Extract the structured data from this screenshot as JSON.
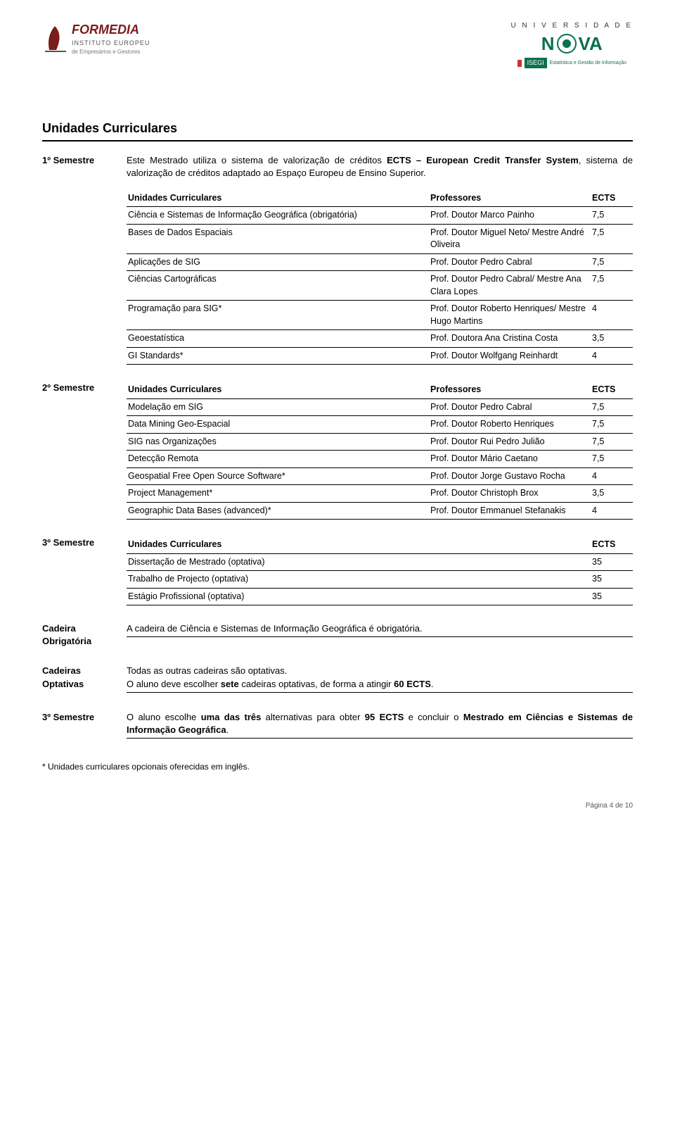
{
  "logos": {
    "left": {
      "brand": "FORMEDIA",
      "line1": "INSTITUTO EUROPEU",
      "line2": "de Empresários e Gestores",
      "accent_color": "#7a1d1d"
    },
    "right": {
      "uni": "U N I V E R S I D A D E",
      "nova": "NOVA",
      "isegi_label": "ISEGI",
      "isegi_sub": "Estatística e Gestão de Informação",
      "nova_color": "#0a7050"
    }
  },
  "title": "Unidades Curriculares",
  "intro": "Este Mestrado utiliza o sistema de valorização de créditos ECTS – European Credit Transfer System, sistema de valorização de créditos adaptado ao Espaço Europeu de Ensino Superior.",
  "intro_bold_phrases": [
    "ECTS – European Credit Transfer System"
  ],
  "sem1": {
    "label": "1º Semestre",
    "headers": [
      "Unidades Curriculares",
      "Professores",
      "ECTS"
    ],
    "rows": [
      {
        "uc": "Ciência e Sistemas de Informação Geográfica (obrigatória)",
        "prof": "Prof. Doutor Marco Painho",
        "ects": "7,5"
      },
      {
        "uc": "Bases de Dados Espaciais",
        "prof": "Prof. Doutor Miguel Neto/ Mestre André Oliveira",
        "ects": "7,5"
      },
      {
        "uc": "Aplicações de SIG",
        "prof": "Prof. Doutor Pedro Cabral",
        "ects": "7,5"
      },
      {
        "uc": "Ciências Cartográficas",
        "prof": "Prof. Doutor Pedro Cabral/ Mestre Ana Clara Lopes",
        "ects": "7,5"
      },
      {
        "uc": "Programação para SIG*",
        "prof": "Prof. Doutor Roberto Henriques/ Mestre Hugo Martins",
        "ects": "4"
      },
      {
        "uc": "Geoestatística",
        "prof": "Prof. Doutora Ana Cristina Costa",
        "ects": "3,5"
      },
      {
        "uc": "GI Standards*",
        "prof": "Prof. Doutor Wolfgang Reinhardt",
        "ects": "4"
      }
    ]
  },
  "sem2": {
    "label": "2º Semestre",
    "headers": [
      "Unidades Curriculares",
      "Professores",
      "ECTS"
    ],
    "rows": [
      {
        "uc": "Modelação em SIG",
        "prof": "Prof. Doutor Pedro Cabral",
        "ects": "7,5"
      },
      {
        "uc": "Data Mining Geo-Espacial",
        "prof": "Prof. Doutor Roberto Henriques",
        "ects": "7,5"
      },
      {
        "uc": "SIG nas Organizações",
        "prof": "Prof. Doutor Rui Pedro Julião",
        "ects": "7,5"
      },
      {
        "uc": "Detecção Remota",
        "prof": "Prof. Doutor Mário Caetano",
        "ects": "7,5"
      },
      {
        "uc": "Geospatial Free Open Source Software*",
        "prof": "Prof. Doutor Jorge Gustavo Rocha",
        "ects": "4"
      },
      {
        "uc": "Project Management*",
        "prof": "Prof. Doutor Christoph Brox",
        "ects": "3,5"
      },
      {
        "uc": "Geographic Data Bases (advanced)*",
        "prof": "Prof. Doutor Emmanuel Stefanakis",
        "ects": "4"
      }
    ]
  },
  "sem3": {
    "label": "3º Semestre",
    "headers": [
      "Unidades Curriculares",
      "ECTS"
    ],
    "rows": [
      {
        "uc": "Dissertação de Mestrado (optativa)",
        "ects": "35"
      },
      {
        "uc": "Trabalho de Projecto (optativa)",
        "ects": "35"
      },
      {
        "uc": "Estágio Profissional (optativa)",
        "ects": "35"
      }
    ]
  },
  "cadeira_obrig": {
    "label": "Cadeira Obrigatória",
    "text": "A cadeira de Ciência e Sistemas de Informação Geográfica é obrigatória."
  },
  "cadeiras_opt": {
    "label": "Cadeiras Optativas",
    "line1": "Todas as outras cadeiras são optativas.",
    "line2_pre": "O aluno deve escolher ",
    "line2_bold": "sete",
    "line2_mid": " cadeiras optativas, de forma a atingir ",
    "line2_bold2": "60 ECTS",
    "line2_post": "."
  },
  "sem3_note": {
    "label": "3º Semestre",
    "pre": "O aluno escolhe ",
    "b1": "uma das três",
    "mid1": " alternativas para obter ",
    "b2": "95 ECTS",
    "mid2": " e concluir o ",
    "b3": "Mestrado em Ciências e Sistemas de Informação Geográfica",
    "post": "."
  },
  "footnote": "* Unidades curriculares opcionais oferecidas em inglês.",
  "page_footer": "Página 4 de 10"
}
